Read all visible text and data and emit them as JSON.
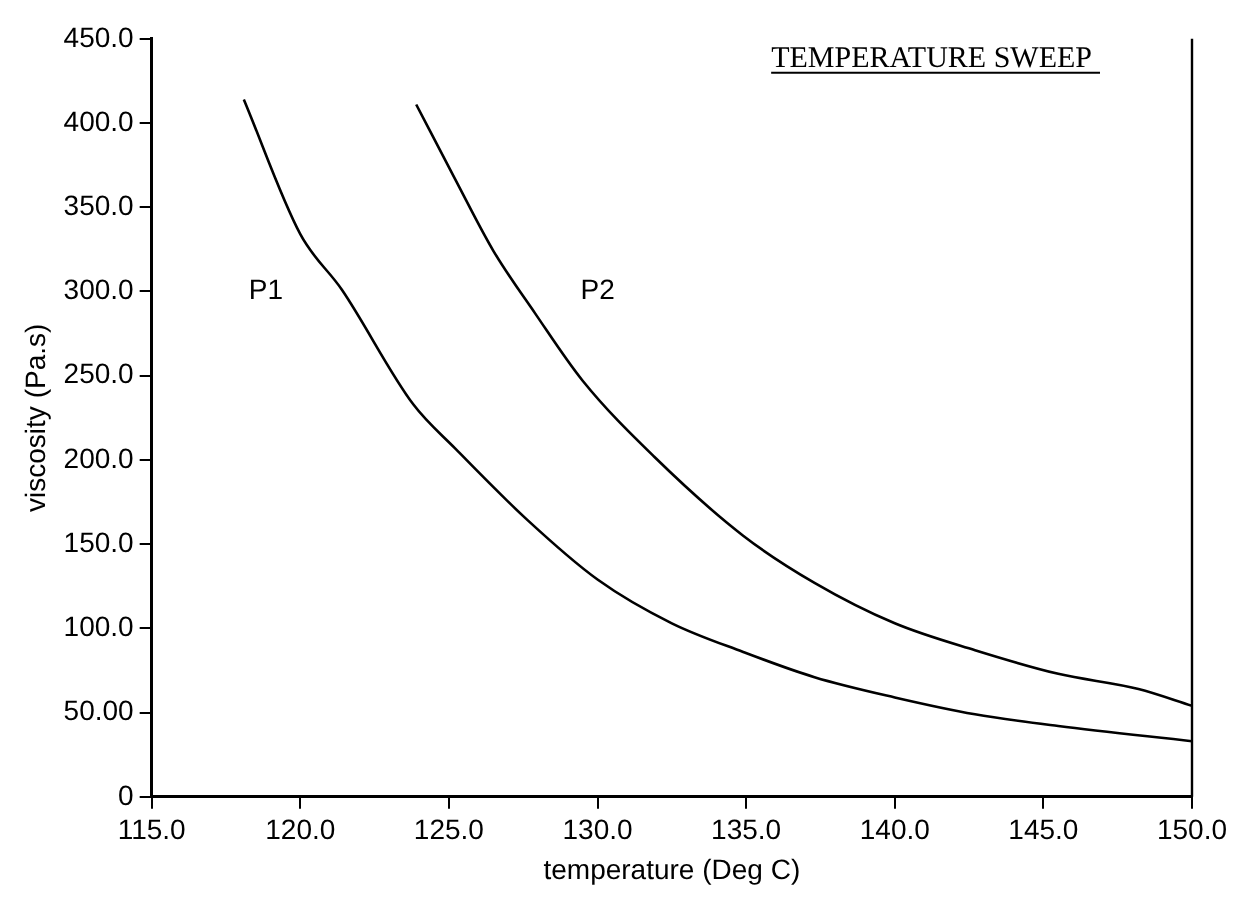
{
  "chart_data": {
    "type": "line",
    "title": "TEMPERATURE SWEEP",
    "xlabel": "temperature (Deg C)",
    "ylabel": "viscosity (Pa.s)",
    "xlim": [
      115,
      150
    ],
    "ylim": [
      0,
      450
    ],
    "xticks": [
      {
        "value": 115,
        "label": "115.0"
      },
      {
        "value": 120,
        "label": "120.0"
      },
      {
        "value": 125,
        "label": "125.0"
      },
      {
        "value": 130,
        "label": "130.0"
      },
      {
        "value": 135,
        "label": "135.0"
      },
      {
        "value": 140,
        "label": "140.0"
      },
      {
        "value": 145,
        "label": "145.0"
      },
      {
        "value": 150,
        "label": "150.0"
      }
    ],
    "yticks": [
      0,
      {
        "value": 50,
        "label": "50.00"
      },
      {
        "value": 100,
        "label": "100.0"
      },
      {
        "value": 150,
        "label": "150.0"
      },
      {
        "value": 200,
        "label": "200.0"
      },
      {
        "value": 250,
        "label": "250.0"
      },
      {
        "value": 300,
        "label": "300.0"
      },
      {
        "value": 350,
        "label": "350.0"
      },
      {
        "value": 400,
        "label": "400.0"
      },
      {
        "value": 450,
        "label": "450.0"
      }
    ],
    "grid": false,
    "legend": false,
    "marker": "none",
    "line_style": "solid",
    "series": [
      {
        "name": "P1",
        "color": "#000000",
        "x": [
          118.1,
          120.0,
          121.4,
          123.8,
          125.2,
          127.6,
          130.0,
          132.5,
          134.9,
          137.3,
          140.0,
          142.7,
          145.5,
          150.0
        ],
        "values": [
          414,
          334,
          301,
          233,
          207,
          165,
          129,
          103,
          86,
          71,
          59,
          49,
          42,
          33
        ]
      },
      {
        "name": "P2",
        "color": "#000000",
        "x": [
          123.9,
          125.2,
          126.5,
          127.9,
          129.5,
          131.9,
          134.9,
          137.3,
          140.0,
          142.7,
          145.5,
          148.2,
          150.0
        ],
        "values": [
          411,
          367,
          324,
          287,
          247,
          202,
          155,
          127,
          103,
          87,
          73,
          64,
          54
        ]
      }
    ]
  }
}
